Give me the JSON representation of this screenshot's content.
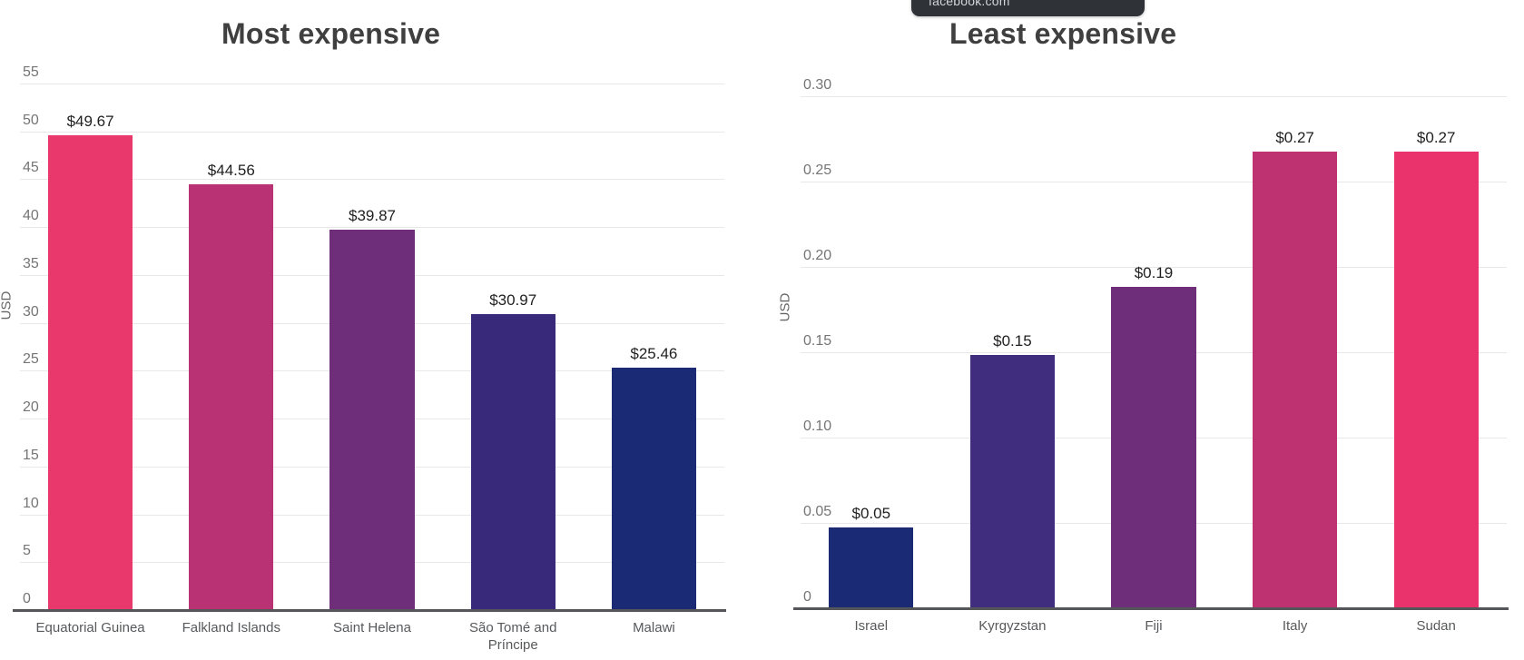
{
  "tooltip": {
    "text": "facebook.com",
    "bg_color": "#2F3338",
    "text_color": "#D3D6DA"
  },
  "chart_data": [
    {
      "type": "bar",
      "title": "Most expensive",
      "xlabel": "",
      "ylabel": "USD",
      "ylim": [
        0,
        55
      ],
      "yticks": [
        0,
        5,
        10,
        15,
        20,
        25,
        30,
        35,
        40,
        45,
        50,
        55
      ],
      "ytick_labels": [
        "0",
        "5",
        "10",
        "15",
        "20",
        "25",
        "30",
        "35",
        "40",
        "45",
        "50",
        "55"
      ],
      "categories": [
        "Equatorial Guinea",
        "Falkland Islands",
        "Saint Helena",
        "São Tomé and Príncipe",
        "Malawi"
      ],
      "values": [
        49.67,
        44.56,
        39.87,
        30.97,
        25.46
      ],
      "value_labels": [
        "$49.67",
        "$44.56",
        "$39.87",
        "$30.97",
        "$25.46"
      ],
      "bar_colors": [
        "#E9386C",
        "#B93273",
        "#6E2E79",
        "#38297B",
        "#1A2A74"
      ],
      "grid": true,
      "legend": "none"
    },
    {
      "type": "bar",
      "title": "Least expensive",
      "xlabel": "",
      "ylabel": "USD",
      "ylim": [
        0,
        0.3
      ],
      "yticks": [
        0,
        0.05,
        0.1,
        0.15,
        0.2,
        0.25,
        0.3
      ],
      "ytick_labels": [
        "0",
        "0.05",
        "0.10",
        "0.15",
        "0.20",
        "0.25",
        "0.30"
      ],
      "categories": [
        "Israel",
        "Kyrgyzstan",
        "Fiji",
        "Italy",
        "Sudan"
      ],
      "values": [
        0.048,
        0.149,
        0.189,
        0.268,
        0.268
      ],
      "value_labels": [
        "$0.05",
        "$0.15",
        "$0.19",
        "$0.27",
        "$0.27"
      ],
      "bar_colors": [
        "#1A2A74",
        "#402D7D",
        "#6E2E79",
        "#BE3271",
        "#EA336C"
      ],
      "grid": true,
      "legend": "none"
    }
  ]
}
